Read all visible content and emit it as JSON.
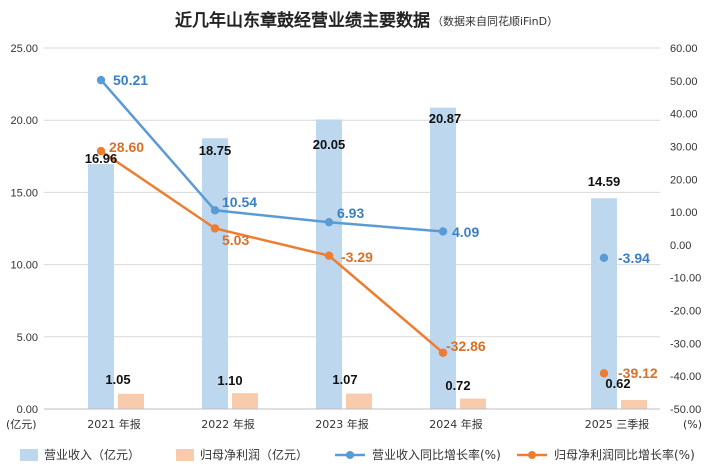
{
  "chart_data": {
    "type": "bar+line",
    "title": "近几年山东章鼓经营业绩主要数据",
    "subtitle": "（数据来自同花顺iFinD）",
    "categories": [
      "2021 年报",
      "2022 年报",
      "2023 年报",
      "2024 年报",
      "2025 三季报"
    ],
    "left_axis": {
      "range": [
        0,
        25
      ],
      "ticks": [
        "0.00",
        "5.00",
        "10.00",
        "15.00",
        "20.00",
        "25.00"
      ],
      "unit_label": "(亿元)"
    },
    "right_axis": {
      "range": [
        -50,
        60
      ],
      "ticks": [
        "-50.00",
        "-40.00",
        "-30.00",
        "-20.00",
        "-10.00",
        "0.00",
        "10.00",
        "20.00",
        "30.00",
        "40.00",
        "50.00",
        "60.00"
      ],
      "unit_label": "(%)"
    },
    "series": [
      {
        "name": "营业收入（亿元）",
        "type": "bar",
        "axis": "left",
        "color": "#bdd7ee",
        "values": [
          16.96,
          18.75,
          20.05,
          20.87,
          14.59
        ],
        "labels": [
          "16.96",
          "18.75",
          "20.05",
          "20.87",
          "14.59"
        ]
      },
      {
        "name": "归母净利润（亿元）",
        "type": "bar",
        "axis": "left",
        "color": "#f8cbad",
        "values": [
          1.05,
          1.1,
          1.07,
          0.72,
          0.62
        ],
        "labels": [
          "1.05",
          "1.10",
          "1.07",
          "0.72",
          "0.62"
        ]
      },
      {
        "name": "营业收入同比增长率(%)",
        "type": "line",
        "axis": "right",
        "color": "#5b9bd5",
        "values": [
          50.21,
          10.54,
          6.93,
          4.09,
          -3.94
        ],
        "labels": [
          "50.21",
          "10.54",
          "6.93",
          "4.09",
          "-3.94"
        ],
        "connected_points": 4
      },
      {
        "name": "归母净利润同比增长率(%)",
        "type": "line",
        "axis": "right",
        "color": "#ed7d31",
        "values": [
          28.6,
          5.03,
          -3.29,
          -32.86,
          -39.12
        ],
        "labels": [
          "28.60",
          "5.03",
          "-3.29",
          "-32.86",
          "-39.12"
        ],
        "connected_points": 4
      }
    ],
    "legend_position": "bottom"
  }
}
